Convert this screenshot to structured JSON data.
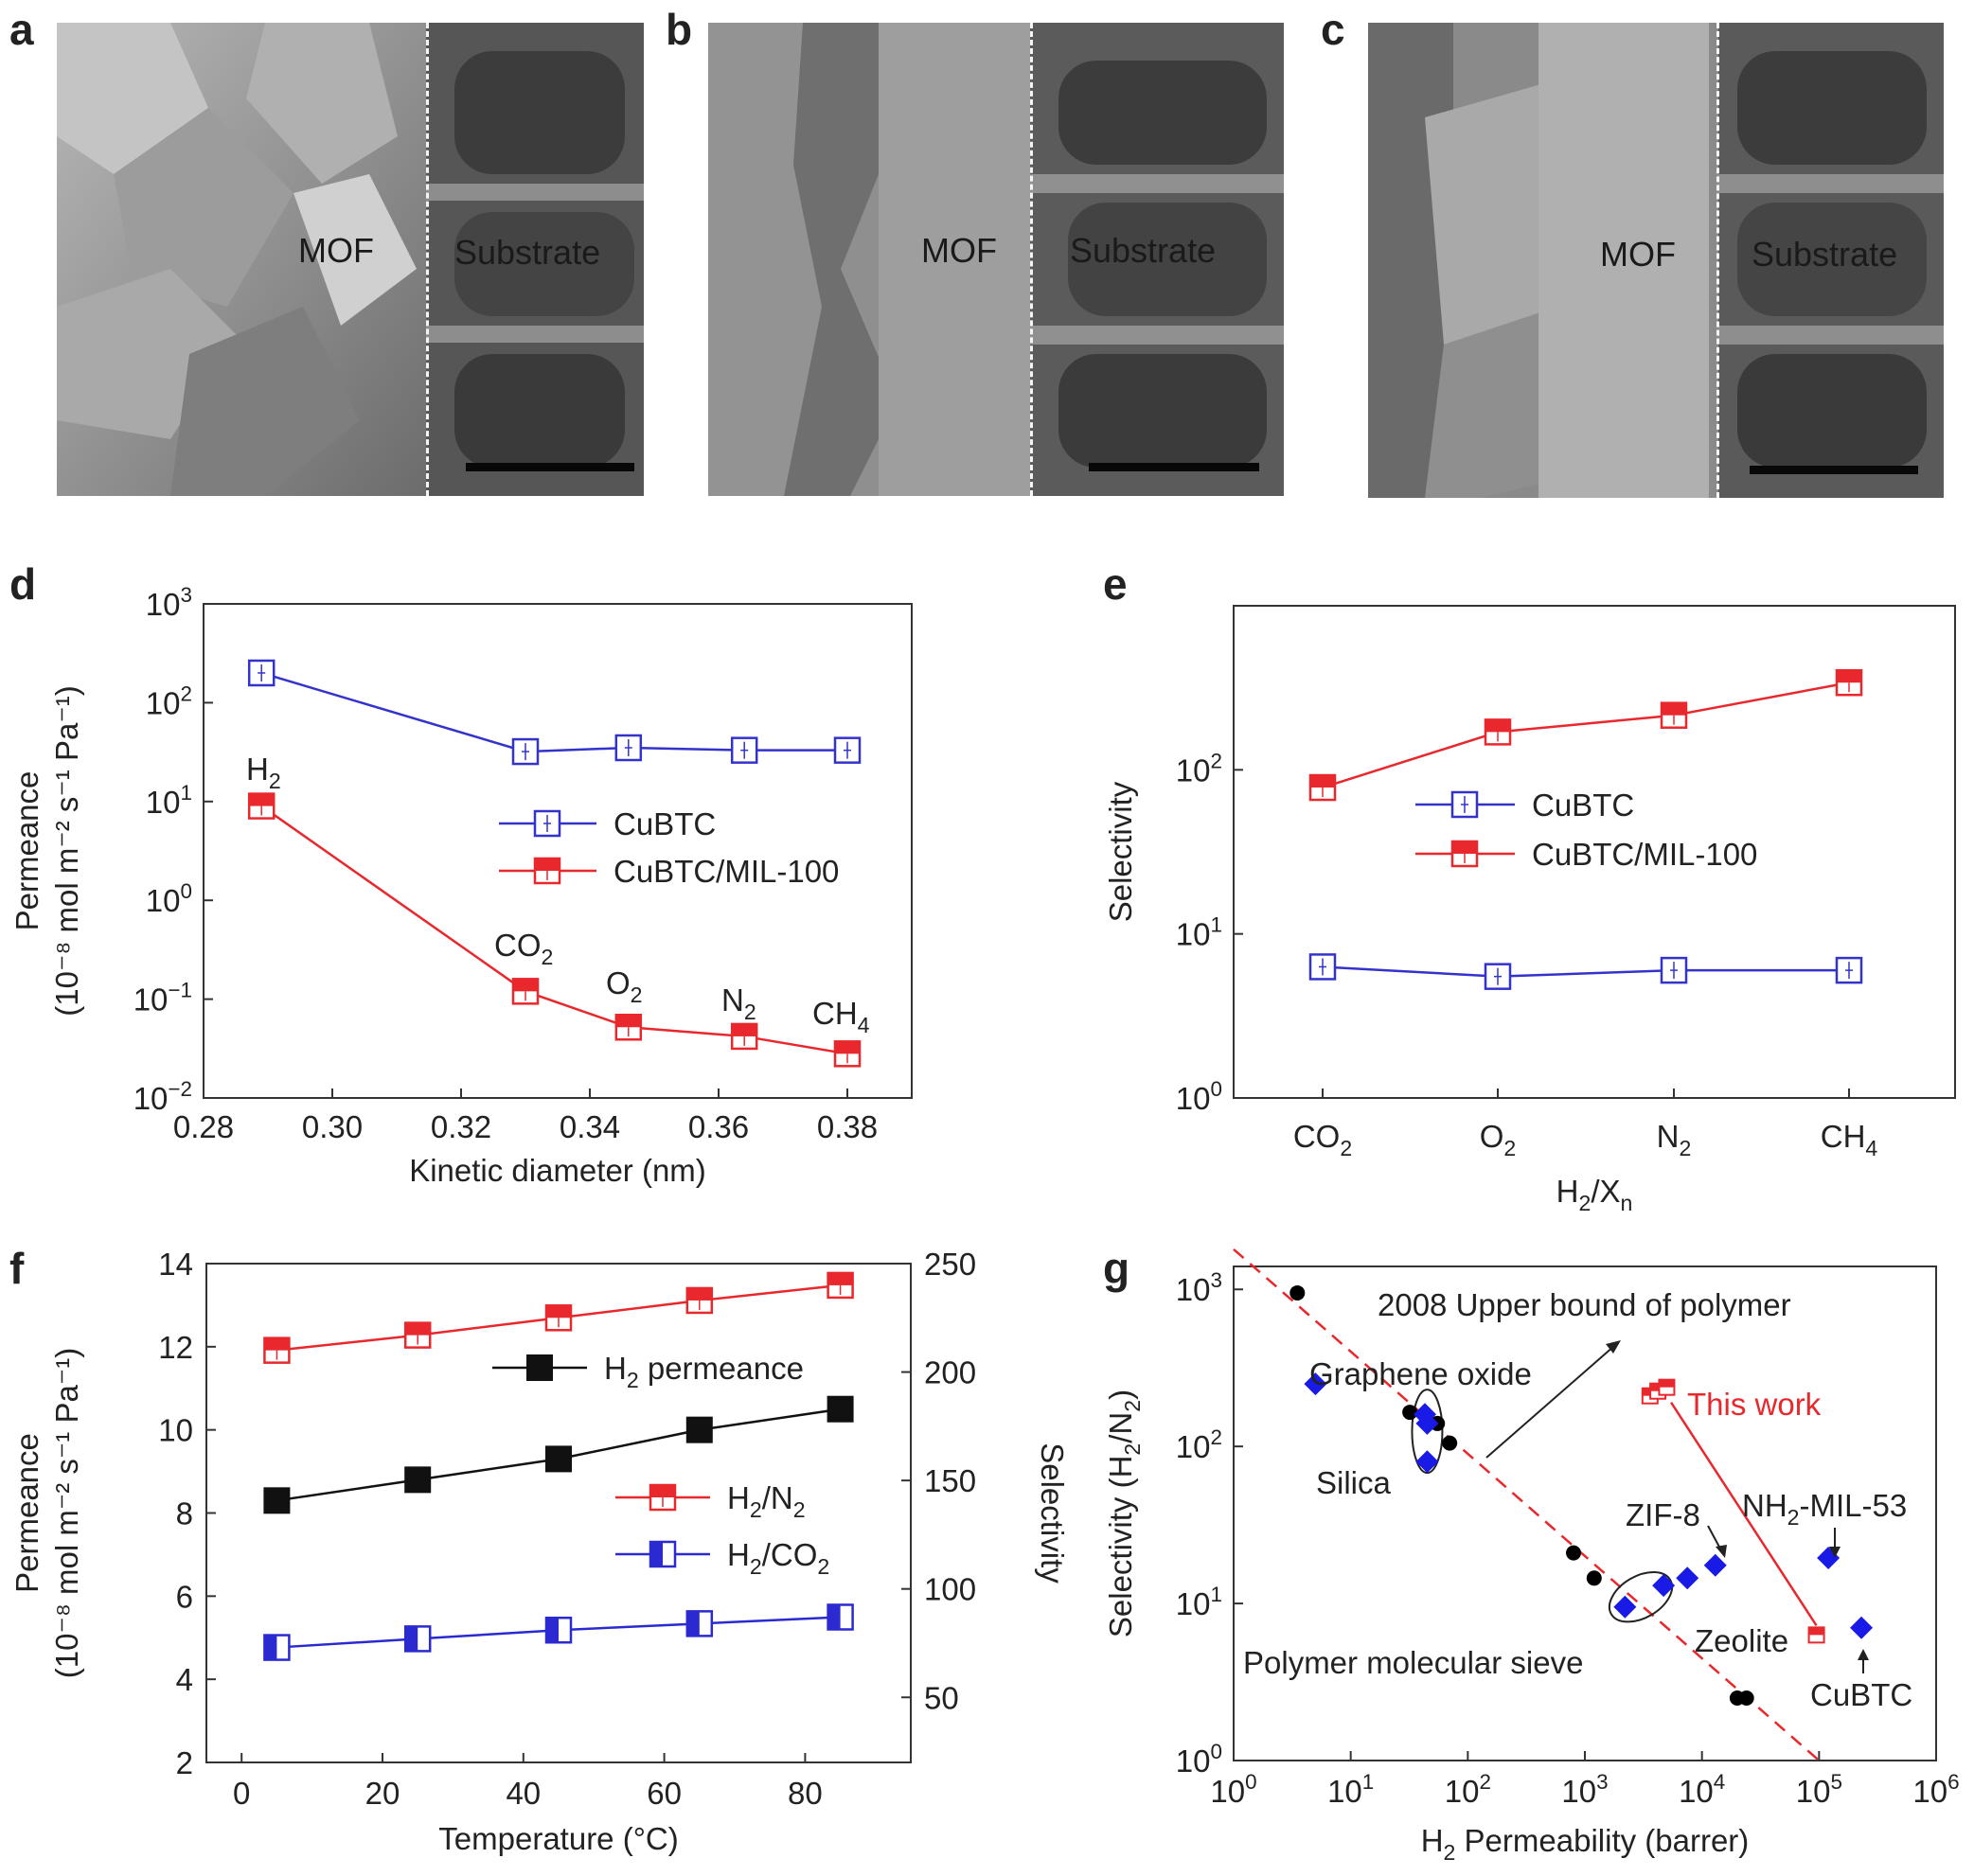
{
  "sem": {
    "a": {
      "letter": "a",
      "left_label": "MOF",
      "right_label": "Substrate"
    },
    "b": {
      "letter": "b",
      "left_label": "MOF",
      "right_label": "Substrate"
    },
    "c": {
      "letter": "c",
      "left_label": "MOF",
      "right_label": "Substrate"
    }
  },
  "chart_data": [
    {
      "panel": "d",
      "type": "line",
      "ylabel_line1": "Permeance",
      "ylabel_line2": "(10⁻⁸ mol m⁻² s⁻¹ Pa⁻¹)",
      "xlabel": "Kinetic diameter (nm)",
      "xlim": [
        0.28,
        0.39
      ],
      "xticks": [
        "0.28",
        "0.30",
        "0.32",
        "0.34",
        "0.36",
        "0.38"
      ],
      "yscale": "log",
      "ylim": [
        0.01,
        1000
      ],
      "yticks": [
        {
          "base": "10",
          "exp": "−2"
        },
        {
          "base": "10",
          "exp": "−1"
        },
        {
          "base": "10",
          "exp": "0"
        },
        {
          "base": "10",
          "exp": "1"
        },
        {
          "base": "10",
          "exp": "2"
        },
        {
          "base": "10",
          "exp": "3"
        }
      ],
      "x": [
        0.289,
        0.33,
        0.346,
        0.364,
        0.38
      ],
      "series": [
        {
          "name": "CuBTC",
          "color": "#3333cc",
          "marker": "open-square",
          "values": [
            200,
            32,
            35,
            33,
            33
          ]
        },
        {
          "name": "CuBTC/MIL-100",
          "color": "#e8282c",
          "marker": "half-filled-square",
          "values": [
            9,
            0.12,
            0.052,
            0.042,
            0.028
          ]
        }
      ],
      "annotations": [
        {
          "base": "H",
          "sub": "2"
        },
        {
          "base": "CO",
          "sub": "2"
        },
        {
          "base": "O",
          "sub": "2"
        },
        {
          "base": "N",
          "sub": "2"
        },
        {
          "base": "CH",
          "sub": "4"
        }
      ],
      "legend_position": "center-right"
    },
    {
      "panel": "e",
      "type": "line",
      "ylabel": "Selectivity",
      "xlabel_base": "H",
      "xlabel_sub1": "2",
      "xlabel_mid": "/X",
      "xlabel_sub2": "n",
      "categories": [
        {
          "base": "CO",
          "sub": "2"
        },
        {
          "base": "O",
          "sub": "2"
        },
        {
          "base": "N",
          "sub": "2"
        },
        {
          "base": "CH",
          "sub": "4"
        }
      ],
      "yscale": "log",
      "ylim": [
        1,
        1000
      ],
      "yticks": [
        {
          "base": "10",
          "exp": "0"
        },
        {
          "base": "10",
          "exp": "1"
        },
        {
          "base": "10",
          "exp": "2"
        }
      ],
      "series": [
        {
          "name": "CuBTC",
          "color": "#3333cc",
          "marker": "open-square",
          "values": [
            6.3,
            5.5,
            6.0,
            6.0
          ]
        },
        {
          "name": "CuBTC/MIL-100",
          "color": "#e8282c",
          "marker": "half-filled-square",
          "values": [
            78,
            170,
            215,
            340
          ]
        }
      ],
      "legend_position": "center"
    },
    {
      "panel": "f",
      "type": "line",
      "ylabel_line1": "Permeance",
      "ylabel_line2": "(10⁻⁸ mol m⁻² s⁻¹ Pa⁻¹)",
      "y2label": "Selectivity",
      "xlabel": "Temperature (°C)",
      "xlim": [
        -5,
        95
      ],
      "xticks": [
        "0",
        "20",
        "40",
        "60",
        "80"
      ],
      "ylim": [
        2,
        14
      ],
      "yticks": [
        "2",
        "4",
        "6",
        "8",
        "10",
        "12",
        "14"
      ],
      "y2lim": [
        20,
        250
      ],
      "y2ticks": [
        "50",
        "100",
        "150",
        "200",
        "250"
      ],
      "x": [
        5,
        25,
        45,
        65,
        85
      ],
      "series": [
        {
          "name_base": "H",
          "name_sub": "2",
          "name_rest": " permeance",
          "axis": "left",
          "color": "#111111",
          "marker": "filled-square",
          "values": [
            8.3,
            8.8,
            9.3,
            10.0,
            10.5
          ]
        },
        {
          "name_base": "H",
          "name_sub": "2",
          "name_rest": "/N",
          "name_sub2": "2",
          "axis": "right",
          "color": "#e8282c",
          "marker": "half-filled-square",
          "values": [
            210,
            217,
            225,
            233,
            240
          ]
        },
        {
          "name_base": "H",
          "name_sub": "2",
          "name_rest": "/CO",
          "name_sub2": "2",
          "axis": "right",
          "color": "#2a2ad0",
          "marker": "left-half-square",
          "values": [
            73,
            77,
            81,
            84,
            87
          ]
        }
      ]
    },
    {
      "panel": "g",
      "type": "scatter",
      "ylabel_base": "Selectivity (H",
      "ylabel_sub": "2",
      "ylabel_mid": "/N",
      "ylabel_sub2": "2",
      "ylabel_end": ")",
      "xlabel_base": "H",
      "xlabel_sub": "2",
      "xlabel_rest": " Permeability (barrer)",
      "xscale": "log",
      "yscale": "log",
      "xlim": [
        1,
        1000000
      ],
      "ylim": [
        1,
        1400
      ],
      "xticks": [
        {
          "base": "10",
          "exp": "0"
        },
        {
          "base": "10",
          "exp": "1"
        },
        {
          "base": "10",
          "exp": "2"
        },
        {
          "base": "10",
          "exp": "3"
        },
        {
          "base": "10",
          "exp": "4"
        },
        {
          "base": "10",
          "exp": "5"
        },
        {
          "base": "10",
          "exp": "6"
        }
      ],
      "yticks": [
        {
          "base": "10",
          "exp": "0"
        },
        {
          "base": "10",
          "exp": "1"
        },
        {
          "base": "10",
          "exp": "2"
        },
        {
          "base": "10",
          "exp": "3"
        }
      ],
      "upper_bound_line": {
        "label": "2008 Upper bound of polymer",
        "color": "#e8282c",
        "points": [
          [
            1,
            1800
          ],
          [
            100000,
            1.0
          ]
        ]
      },
      "black_points": [
        [
          3.5,
          950
        ],
        [
          32,
          165
        ],
        [
          55,
          140
        ],
        [
          70,
          105
        ],
        [
          800,
          21
        ],
        [
          1200,
          14.5
        ],
        [
          20000,
          2.5
        ],
        [
          24000,
          2.5
        ]
      ],
      "blue_diamonds": [
        [
          5,
          250
        ],
        [
          43,
          160
        ],
        [
          45,
          140
        ],
        [
          45,
          80
        ],
        [
          2200,
          9.5
        ],
        [
          4700,
          13
        ],
        [
          7500,
          14.5
        ],
        [
          13000,
          17.5
        ],
        [
          120000,
          19.5
        ],
        [
          230000,
          7
        ]
      ],
      "this_work": [
        [
          3600,
          210
        ],
        [
          4200,
          225
        ],
        [
          5000,
          238
        ],
        [
          95000,
          6.3
        ]
      ],
      "labels": [
        {
          "text": "Graphene oxide"
        },
        {
          "text": "Silica"
        },
        {
          "text": "ZIF-8"
        },
        {
          "text_base": "NH",
          "text_sub": "2",
          "text_rest": "-MIL-53"
        },
        {
          "text": "Zeolite"
        },
        {
          "text": "Polymer molecular sieve"
        },
        {
          "text": "CuBTC"
        },
        {
          "text": "This work",
          "color": "#e8282c"
        }
      ]
    }
  ]
}
